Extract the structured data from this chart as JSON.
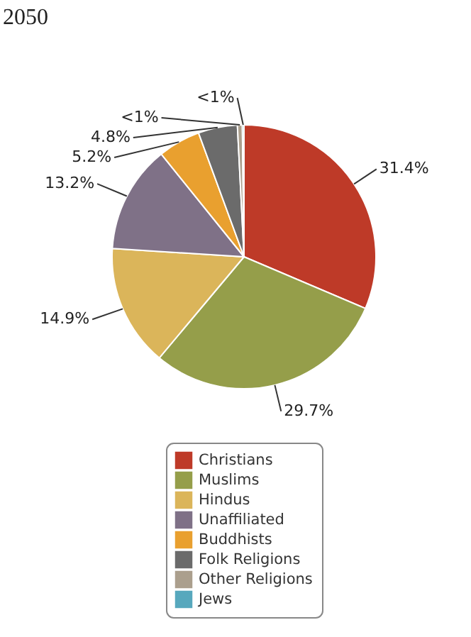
{
  "chart_data": {
    "type": "pie",
    "title": "2050",
    "categories": [
      "Christians",
      "Muslims",
      "Hindus",
      "Unaffiliated",
      "Buddhists",
      "Folk Religions",
      "Other Religions",
      "Jews"
    ],
    "values": [
      31.4,
      29.7,
      14.9,
      13.2,
      5.2,
      4.8,
      0.6,
      0.2
    ],
    "colors": [
      "#be3a28",
      "#959e4a",
      "#dbb55a",
      "#7f7187",
      "#e9a02f",
      "#6b6b6b",
      "#ab9f8d",
      "#57a8bd"
    ],
    "value_labels": [
      "31.4%",
      "29.7%",
      "14.9%",
      "13.2%",
      "5.2%",
      "4.8%",
      "<1%",
      "<1%"
    ],
    "legend": "bottom"
  }
}
